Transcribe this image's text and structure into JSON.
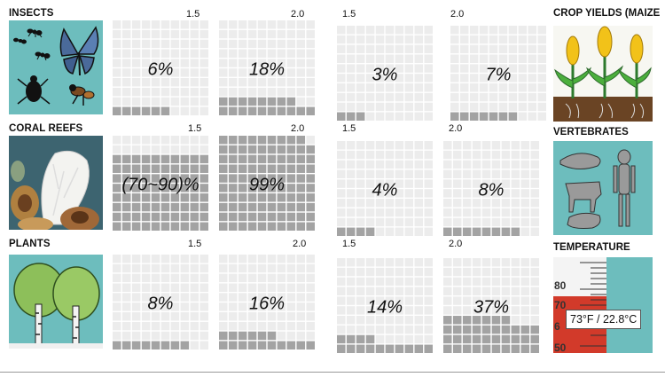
{
  "colors": {
    "filled": "#a3a3a3",
    "empty": "#ececec",
    "teal": "#6dbdbd"
  },
  "categories": {
    "insects": "INSECTS",
    "coral": "CORAL REEFS",
    "plants": "PLANTS",
    "crop": "CROP YIELDS (MAIZE",
    "vertebrates": "VERTEBRATES",
    "temperature": "TEMPERATURE"
  },
  "temperature_readout": "73°F / 22.8°C",
  "thermo_ticks": [
    "80",
    "70",
    "6",
    "50"
  ],
  "chart_data": {
    "type": "waffle",
    "grid": "10x10",
    "panels": [
      {
        "category": "INSECTS",
        "scenario": "1.5",
        "value": 6,
        "label": "6%"
      },
      {
        "category": "INSECTS",
        "scenario": "2.0",
        "value": 18,
        "label": "18%"
      },
      {
        "category": "CROP YIELDS (MAIZE",
        "scenario": "1.5",
        "value": 3,
        "label": "3%"
      },
      {
        "category": "CROP YIELDS (MAIZE",
        "scenario": "2.0",
        "value": 7,
        "label": "7%"
      },
      {
        "category": "CORAL REEFS",
        "scenario": "1.5",
        "value": 80,
        "label": "(70~90)%"
      },
      {
        "category": "CORAL REEFS",
        "scenario": "2.0",
        "value": 99,
        "label": "99%"
      },
      {
        "category": "VERTEBRATES",
        "scenario": "1.5",
        "value": 4,
        "label": "4%"
      },
      {
        "category": "VERTEBRATES",
        "scenario": "2.0",
        "value": 8,
        "label": "8%"
      },
      {
        "category": "PLANTS",
        "scenario": "1.5",
        "value": 8,
        "label": "8%"
      },
      {
        "category": "PLANTS",
        "scenario": "2.0",
        "value": 16,
        "label": "16%"
      },
      {
        "category": "TEMPERATURE",
        "scenario": "1.5",
        "value": 14,
        "label": "14%"
      },
      {
        "category": "TEMPERATURE",
        "scenario": "2.0",
        "value": 37,
        "label": "37%"
      }
    ]
  }
}
